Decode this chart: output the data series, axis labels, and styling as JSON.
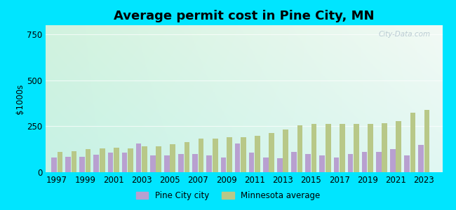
{
  "title": "Average permit cost in Pine City, MN",
  "ylabel": "$1000s",
  "years": [
    1997,
    1998,
    1999,
    2000,
    2001,
    2002,
    2003,
    2004,
    2005,
    2006,
    2007,
    2008,
    2009,
    2010,
    2011,
    2012,
    2013,
    2014,
    2015,
    2016,
    2017,
    2018,
    2019,
    2020,
    2021,
    2022,
    2023
  ],
  "pine_city": [
    80,
    85,
    85,
    95,
    105,
    105,
    155,
    90,
    90,
    100,
    100,
    90,
    80,
    155,
    105,
    80,
    75,
    110,
    100,
    90,
    80,
    100,
    110,
    110,
    125,
    90,
    150
  ],
  "mn_average": [
    110,
    115,
    125,
    128,
    132,
    128,
    140,
    142,
    152,
    162,
    182,
    182,
    192,
    192,
    198,
    212,
    232,
    255,
    262,
    262,
    262,
    262,
    262,
    268,
    280,
    325,
    340
  ],
  "pine_city_color": "#b8a0d0",
  "mn_average_color": "#b8c888",
  "background_outer": "#00e5ff",
  "ylim": [
    0,
    800
  ],
  "yticks": [
    0,
    250,
    500,
    750
  ],
  "xticks": [
    1997,
    1999,
    2001,
    2003,
    2005,
    2007,
    2009,
    2011,
    2013,
    2015,
    2017,
    2019,
    2021,
    2023
  ],
  "legend_pine_city": "Pine City city",
  "legend_mn": "Minnesota average",
  "title_fontsize": 13,
  "label_fontsize": 8.5,
  "watermark": "City-Data.com"
}
